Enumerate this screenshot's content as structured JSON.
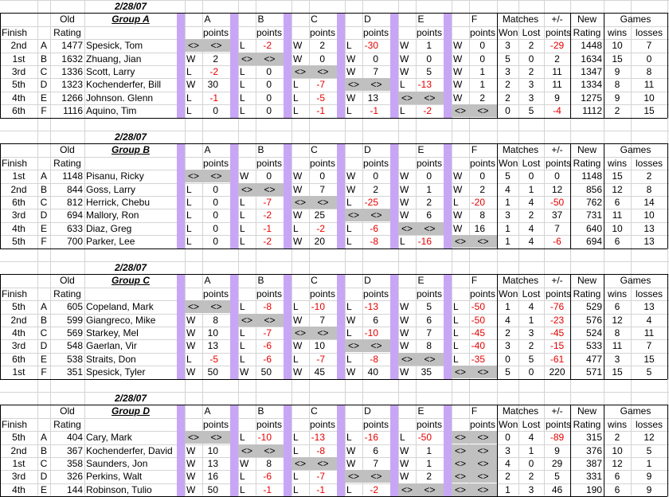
{
  "columns": {
    "finish": "Finish",
    "old_top": "Old",
    "old_bottom": "Rating",
    "opponents": [
      "A",
      "B",
      "C",
      "D",
      "E",
      "F"
    ],
    "points": "points",
    "matches": "Matches",
    "won": "Won",
    "lost": "Lost",
    "plusminus": "+/-",
    "new_top": "New",
    "new_bottom": "Rating",
    "games": "Games",
    "wins": "wins",
    "losses": "losses"
  },
  "groups": [
    {
      "date": "2/28/07",
      "name": "Group A",
      "players": [
        {
          "finish": "2nd",
          "letter": "A",
          "rating": "1477",
          "name": "Spesick, Tom",
          "results": [
            null,
            [
              "L",
              "-2"
            ],
            [
              "W",
              "2"
            ],
            [
              "L",
              "-30"
            ],
            [
              "W",
              "1"
            ],
            [
              "W",
              "0"
            ]
          ],
          "won": "3",
          "lost": "2",
          "points": "-29",
          "new_rating": "1448",
          "wins": "10",
          "losses": "7"
        },
        {
          "finish": "1st",
          "letter": "B",
          "rating": "1632",
          "name": "Zhuang, Jian",
          "results": [
            [
              "W",
              "2"
            ],
            null,
            [
              "W",
              "0"
            ],
            [
              "W",
              "0"
            ],
            [
              "W",
              "0"
            ],
            [
              "W",
              "0"
            ]
          ],
          "won": "5",
          "lost": "0",
          "points": "2",
          "new_rating": "1634",
          "wins": "15",
          "losses": "0"
        },
        {
          "finish": "3rd",
          "letter": "C",
          "rating": "1336",
          "name": "Scott, Larry",
          "results": [
            [
              "L",
              "-2"
            ],
            [
              "L",
              "0"
            ],
            null,
            [
              "W",
              "7"
            ],
            [
              "W",
              "5"
            ],
            [
              "W",
              "1"
            ]
          ],
          "won": "3",
          "lost": "2",
          "points": "11",
          "new_rating": "1347",
          "wins": "9",
          "losses": "8"
        },
        {
          "finish": "5th",
          "letter": "D",
          "rating": "1323",
          "name": "Kochenderfer, Bill",
          "results": [
            [
              "W",
              "30"
            ],
            [
              "L",
              "0"
            ],
            [
              "L",
              "-7"
            ],
            null,
            [
              "L",
              "-13"
            ],
            [
              "W",
              "1"
            ]
          ],
          "won": "2",
          "lost": "3",
          "points": "11",
          "new_rating": "1334",
          "wins": "8",
          "losses": "11"
        },
        {
          "finish": "4th",
          "letter": "E",
          "rating": "1266",
          "name": "Johnson. Glenn",
          "results": [
            [
              "L",
              "-1"
            ],
            [
              "L",
              "0"
            ],
            [
              "L",
              "-5"
            ],
            [
              "W",
              "13"
            ],
            null,
            [
              "W",
              "2"
            ]
          ],
          "won": "2",
          "lost": "3",
          "points": "9",
          "new_rating": "1275",
          "wins": "9",
          "losses": "10"
        },
        {
          "finish": "6th",
          "letter": "F",
          "rating": "1116",
          "name": "Aquino, Tim",
          "results": [
            [
              "L",
              "0"
            ],
            [
              "L",
              "0"
            ],
            [
              "L",
              "-1"
            ],
            [
              "L",
              "-1"
            ],
            [
              "L",
              "-2"
            ],
            null
          ],
          "won": "0",
          "lost": "5",
          "points": "-4",
          "new_rating": "1112",
          "wins": "2",
          "losses": "15"
        }
      ]
    },
    {
      "date": "2/28/07",
      "name": "Group B",
      "players": [
        {
          "finish": "1st",
          "letter": "A",
          "rating": "1148",
          "name": "Pisanu, Ricky",
          "results": [
            null,
            [
              "W",
              "0"
            ],
            [
              "W",
              "0"
            ],
            [
              "W",
              "0"
            ],
            [
              "W",
              "0"
            ],
            [
              "W",
              "0"
            ]
          ],
          "won": "5",
          "lost": "0",
          "points": "0",
          "new_rating": "1148",
          "wins": "15",
          "losses": "2"
        },
        {
          "finish": "2nd",
          "letter": "B",
          "rating": "844",
          "name": "Goss, Larry",
          "results": [
            [
              "L",
              "0"
            ],
            null,
            [
              "W",
              "7"
            ],
            [
              "W",
              "2"
            ],
            [
              "W",
              "1"
            ],
            [
              "W",
              "2"
            ]
          ],
          "won": "4",
          "lost": "1",
          "points": "12",
          "new_rating": "856",
          "wins": "12",
          "losses": "8"
        },
        {
          "finish": "6th",
          "letter": "C",
          "rating": "812",
          "name": "Herrick, Chebu",
          "results": [
            [
              "L",
              "0"
            ],
            [
              "L",
              "-7"
            ],
            null,
            [
              "L",
              "-25"
            ],
            [
              "W",
              "2"
            ],
            [
              "L",
              "-20"
            ]
          ],
          "won": "1",
          "lost": "4",
          "points": "-50",
          "new_rating": "762",
          "wins": "6",
          "losses": "14"
        },
        {
          "finish": "3rd",
          "letter": "D",
          "rating": "694",
          "name": "Mallory, Ron",
          "results": [
            [
              "L",
              "0"
            ],
            [
              "L",
              "-2"
            ],
            [
              "W",
              "25"
            ],
            null,
            [
              "W",
              "6"
            ],
            [
              "W",
              "8"
            ]
          ],
          "won": "3",
          "lost": "2",
          "points": "37",
          "new_rating": "731",
          "wins": "11",
          "losses": "10"
        },
        {
          "finish": "4th",
          "letter": "E",
          "rating": "633",
          "name": "Diaz, Greg",
          "results": [
            [
              "L",
              "0"
            ],
            [
              "L",
              "-1"
            ],
            [
              "L",
              "-2"
            ],
            [
              "L",
              "-6"
            ],
            null,
            [
              "W",
              "16"
            ]
          ],
          "won": "1",
          "lost": "4",
          "points": "7",
          "new_rating": "640",
          "wins": "10",
          "losses": "13"
        },
        {
          "finish": "5th",
          "letter": "F",
          "rating": "700",
          "name": "Parker, Lee",
          "results": [
            [
              "L",
              "0"
            ],
            [
              "L",
              "-2"
            ],
            [
              "W",
              "20"
            ],
            [
              "L",
              "-8"
            ],
            [
              "L",
              "-16"
            ],
            null
          ],
          "won": "1",
          "lost": "4",
          "points": "-6",
          "new_rating": "694",
          "wins": "6",
          "losses": "13"
        }
      ]
    },
    {
      "date": "2/28/07",
      "name": "Group C",
      "players": [
        {
          "finish": "5th",
          "letter": "A",
          "rating": "605",
          "name": "Copeland, Mark",
          "results": [
            null,
            [
              "L",
              "-8"
            ],
            [
              "L",
              "-10"
            ],
            [
              "L",
              "-13"
            ],
            [
              "W",
              "5"
            ],
            [
              "L",
              "-50"
            ]
          ],
          "won": "1",
          "lost": "4",
          "points": "-76",
          "new_rating": "529",
          "wins": "6",
          "losses": "13"
        },
        {
          "finish": "2nd",
          "letter": "B",
          "rating": "599",
          "name": "Giangreco, Mike",
          "results": [
            [
              "W",
              "8"
            ],
            null,
            [
              "W",
              "7"
            ],
            [
              "W",
              "6"
            ],
            [
              "W",
              "6"
            ],
            [
              "L",
              "-50"
            ]
          ],
          "won": "4",
          "lost": "1",
          "points": "-23",
          "new_rating": "576",
          "wins": "12",
          "losses": "4"
        },
        {
          "finish": "4th",
          "letter": "C",
          "rating": "569",
          "name": "Starkey, Mel",
          "results": [
            [
              "W",
              "10"
            ],
            [
              "L",
              "-7"
            ],
            null,
            [
              "L",
              "-10"
            ],
            [
              "W",
              "7"
            ],
            [
              "L",
              "-45"
            ]
          ],
          "won": "2",
          "lost": "3",
          "points": "-45",
          "new_rating": "524",
          "wins": "8",
          "losses": "11"
        },
        {
          "finish": "3rd",
          "letter": "D",
          "rating": "548",
          "name": "Gaerlan, Vir",
          "results": [
            [
              "W",
              "13"
            ],
            [
              "L",
              "-6"
            ],
            [
              "W",
              "10"
            ],
            null,
            [
              "W",
              "8"
            ],
            [
              "L",
              "-40"
            ]
          ],
          "won": "3",
          "lost": "2",
          "points": "-15",
          "new_rating": "533",
          "wins": "11",
          "losses": "7"
        },
        {
          "finish": "6th",
          "letter": "E",
          "rating": "538",
          "name": "Straits, Don",
          "results": [
            [
              "L",
              "-5"
            ],
            [
              "L",
              "-6"
            ],
            [
              "L",
              "-7"
            ],
            [
              "L",
              "-8"
            ],
            null,
            [
              "L",
              "-35"
            ]
          ],
          "won": "0",
          "lost": "5",
          "points": "-61",
          "new_rating": "477",
          "wins": "3",
          "losses": "15"
        },
        {
          "finish": "1st",
          "letter": "F",
          "rating": "351",
          "name": "Spesick, Tyler",
          "results": [
            [
              "W",
              "50"
            ],
            [
              "W",
              "50"
            ],
            [
              "W",
              "45"
            ],
            [
              "W",
              "40"
            ],
            [
              "W",
              "35"
            ],
            null
          ],
          "won": "5",
          "lost": "0",
          "points": "220",
          "new_rating": "571",
          "wins": "15",
          "losses": "5"
        }
      ]
    },
    {
      "date": "2/28/07",
      "name": "Group D",
      "players": [
        {
          "finish": "5th",
          "letter": "A",
          "rating": "404",
          "name": "Cary, Mark",
          "results": [
            null,
            [
              "L",
              "-10"
            ],
            [
              "L",
              "-13"
            ],
            [
              "L",
              "-16"
            ],
            [
              "L",
              "-50"
            ],
            null
          ],
          "won": "0",
          "lost": "4",
          "points": "-89",
          "new_rating": "315",
          "wins": "2",
          "losses": "12"
        },
        {
          "finish": "2nd",
          "letter": "B",
          "rating": "367",
          "name": "Kochenderfer, David",
          "results": [
            [
              "W",
              "10"
            ],
            null,
            [
              "L",
              "-8"
            ],
            [
              "W",
              "6"
            ],
            [
              "W",
              "1"
            ],
            null
          ],
          "won": "3",
          "lost": "1",
          "points": "9",
          "new_rating": "376",
          "wins": "10",
          "losses": "5"
        },
        {
          "finish": "1st",
          "letter": "C",
          "rating": "358",
          "name": "Saunders, Jon",
          "results": [
            [
              "W",
              "13"
            ],
            [
              "W",
              "8"
            ],
            null,
            [
              "W",
              "7"
            ],
            [
              "W",
              "1"
            ],
            null
          ],
          "won": "4",
          "lost": "0",
          "points": "29",
          "new_rating": "387",
          "wins": "12",
          "losses": "1"
        },
        {
          "finish": "3rd",
          "letter": "D",
          "rating": "326",
          "name": "Perkins, Walt",
          "results": [
            [
              "W",
              "16"
            ],
            [
              "L",
              "-6"
            ],
            [
              "L",
              "-7"
            ],
            null,
            [
              "W",
              "2"
            ],
            null
          ],
          "won": "2",
          "lost": "2",
          "points": "5",
          "new_rating": "331",
          "wins": "6",
          "losses": "9"
        },
        {
          "finish": "4th",
          "letter": "E",
          "rating": "144",
          "name": "Robinson, Tulio",
          "results": [
            [
              "W",
              "50"
            ],
            [
              "L",
              "-1"
            ],
            [
              "L",
              "-1"
            ],
            [
              "L",
              "-2"
            ],
            null,
            null
          ],
          "won": "1",
          "lost": "3",
          "points": "46",
          "new_rating": "190",
          "wins": "6",
          "losses": "9"
        }
      ]
    }
  ],
  "blank_mark": "<>",
  "colors": {
    "separator": "#c9a6f5",
    "blank_cell": "#c0c0c0",
    "negative": "#e60000",
    "gridline": "#d4d4d4"
  }
}
